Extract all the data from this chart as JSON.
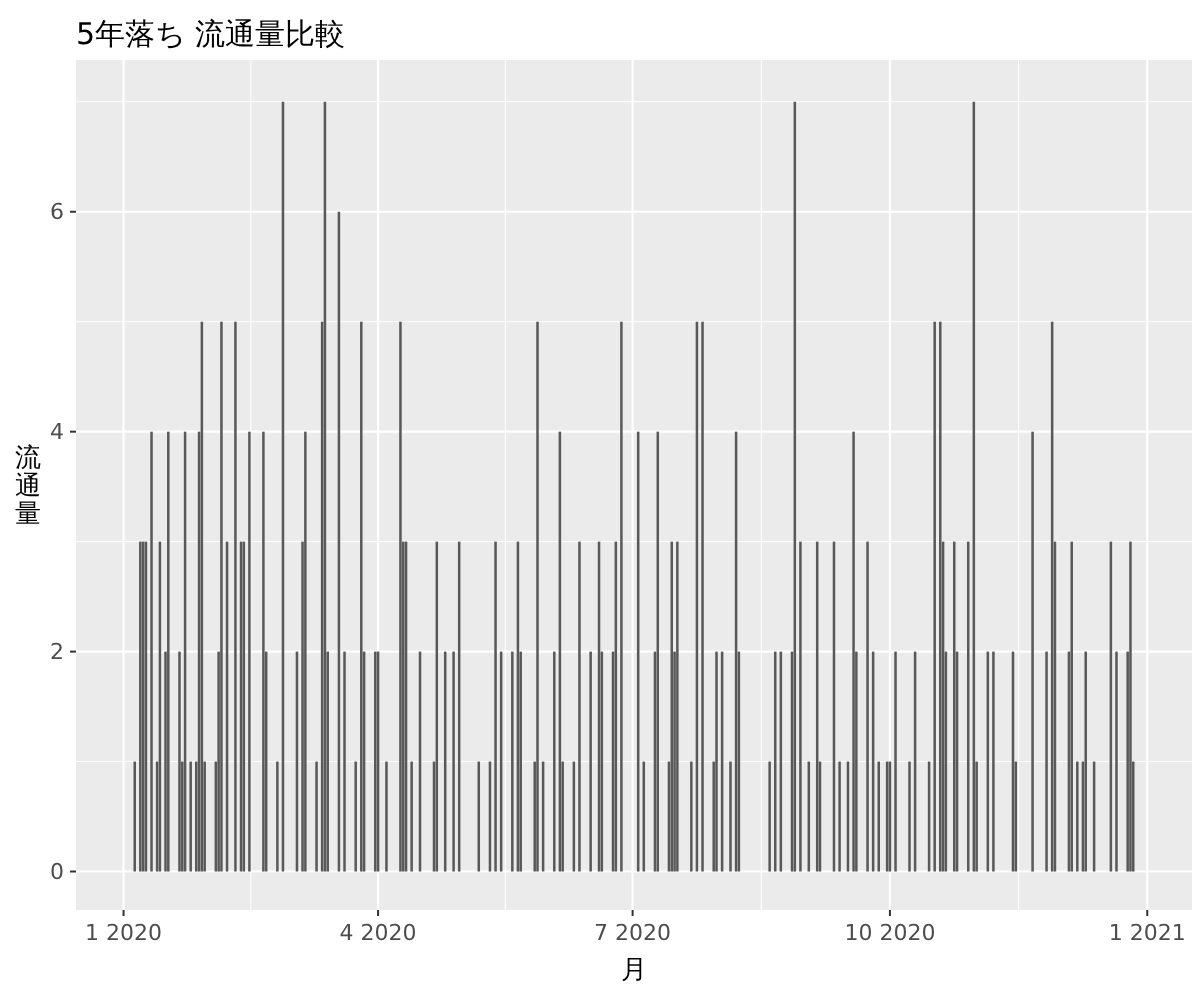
{
  "chart_data": {
    "type": "bar",
    "title": "5年落ち 流通量比較",
    "xlabel": "月",
    "ylabel": "流通量",
    "color": "#595959",
    "grid": true,
    "xlim": [
      "2019-12-15",
      "2021-01-17"
    ],
    "xticks": [
      {
        "value": "2020-01-01",
        "label": "1 2020"
      },
      {
        "value": "2020-04-01",
        "label": "4 2020"
      },
      {
        "value": "2020-07-01",
        "label": "7 2020"
      },
      {
        "value": "2020-10-01",
        "label": "10 2020"
      },
      {
        "value": "2021-01-01",
        "label": "1 2021"
      }
    ],
    "ylim": [
      -0.35,
      7.38
    ],
    "yticks": [
      0,
      2,
      4,
      6
    ],
    "x": [
      "2020-01-05",
      "2020-01-07",
      "2020-01-08",
      "2020-01-09",
      "2020-01-11",
      "2020-01-13",
      "2020-01-14",
      "2020-01-16",
      "2020-01-17",
      "2020-01-21",
      "2020-01-22",
      "2020-01-23",
      "2020-01-25",
      "2020-01-27",
      "2020-01-28",
      "2020-01-29",
      "2020-01-30",
      "2020-02-03",
      "2020-02-04",
      "2020-02-05",
      "2020-02-07",
      "2020-02-10",
      "2020-02-12",
      "2020-02-13",
      "2020-02-15",
      "2020-02-20",
      "2020-02-21",
      "2020-02-25",
      "2020-02-27",
      "2020-03-03",
      "2020-03-05",
      "2020-03-06",
      "2020-03-10",
      "2020-03-12",
      "2020-03-13",
      "2020-03-14",
      "2020-03-18",
      "2020-03-20",
      "2020-03-24",
      "2020-03-26",
      "2020-03-27",
      "2020-03-31",
      "2020-04-01",
      "2020-04-04",
      "2020-04-09",
      "2020-04-10",
      "2020-04-11",
      "2020-04-13",
      "2020-04-16",
      "2020-04-21",
      "2020-04-22",
      "2020-04-25",
      "2020-04-28",
      "2020-04-30",
      "2020-05-07",
      "2020-05-11",
      "2020-05-13",
      "2020-05-15",
      "2020-05-19",
      "2020-05-21",
      "2020-05-22",
      "2020-05-27",
      "2020-05-28",
      "2020-05-30",
      "2020-06-03",
      "2020-06-05",
      "2020-06-06",
      "2020-06-10",
      "2020-06-12",
      "2020-06-16",
      "2020-06-19",
      "2020-06-20",
      "2020-06-24",
      "2020-06-25",
      "2020-06-27",
      "2020-07-03",
      "2020-07-05",
      "2020-07-09",
      "2020-07-10",
      "2020-07-14",
      "2020-07-15",
      "2020-07-16",
      "2020-07-17",
      "2020-07-22",
      "2020-07-24",
      "2020-07-26",
      "2020-07-30",
      "2020-07-31",
      "2020-08-02",
      "2020-08-05",
      "2020-08-07",
      "2020-08-08",
      "2020-08-19",
      "2020-08-21",
      "2020-08-23",
      "2020-08-27",
      "2020-08-28",
      "2020-08-30",
      "2020-09-02",
      "2020-09-05",
      "2020-09-06",
      "2020-09-11",
      "2020-09-13",
      "2020-09-16",
      "2020-09-18",
      "2020-09-19",
      "2020-09-23",
      "2020-09-25",
      "2020-09-27",
      "2020-09-30",
      "2020-10-01",
      "2020-10-03",
      "2020-10-08",
      "2020-10-10",
      "2020-10-15",
      "2020-10-17",
      "2020-10-19",
      "2020-10-20",
      "2020-10-21",
      "2020-10-24",
      "2020-10-25",
      "2020-10-29",
      "2020-10-31",
      "2020-11-01",
      "2020-11-05",
      "2020-11-07",
      "2020-11-14",
      "2020-11-15",
      "2020-11-21",
      "2020-11-26",
      "2020-11-28",
      "2020-11-29",
      "2020-12-04",
      "2020-12-05",
      "2020-12-07",
      "2020-12-09",
      "2020-12-10",
      "2020-12-13",
      "2020-12-19",
      "2020-12-21",
      "2020-12-25",
      "2020-12-26",
      "2020-12-27"
    ],
    "values": [
      1,
      3,
      3,
      3,
      4,
      1,
      3,
      2,
      4,
      2,
      1,
      4,
      1,
      1,
      4,
      5,
      1,
      1,
      2,
      5,
      3,
      5,
      3,
      3,
      4,
      4,
      2,
      1,
      7,
      2,
      3,
      4,
      1,
      5,
      7,
      2,
      6,
      2,
      1,
      5,
      2,
      2,
      2,
      1,
      5,
      3,
      3,
      1,
      2,
      1,
      3,
      2,
      2,
      3,
      1,
      1,
      3,
      2,
      2,
      3,
      2,
      1,
      5,
      1,
      2,
      4,
      1,
      1,
      3,
      2,
      3,
      2,
      2,
      3,
      5,
      4,
      1,
      2,
      4,
      1,
      3,
      2,
      3,
      1,
      5,
      5,
      1,
      2,
      2,
      1,
      4,
      2,
      1,
      2,
      2,
      2,
      7,
      3,
      1,
      3,
      1,
      3,
      1,
      1,
      4,
      2,
      3,
      2,
      1,
      1,
      1,
      2,
      1,
      2,
      1,
      5,
      5,
      3,
      2,
      3,
      2,
      3,
      7,
      1,
      2,
      2,
      2,
      1,
      4,
      2,
      5,
      3,
      2,
      3,
      1,
      1,
      2,
      1,
      3,
      2,
      2,
      3,
      1
    ]
  }
}
